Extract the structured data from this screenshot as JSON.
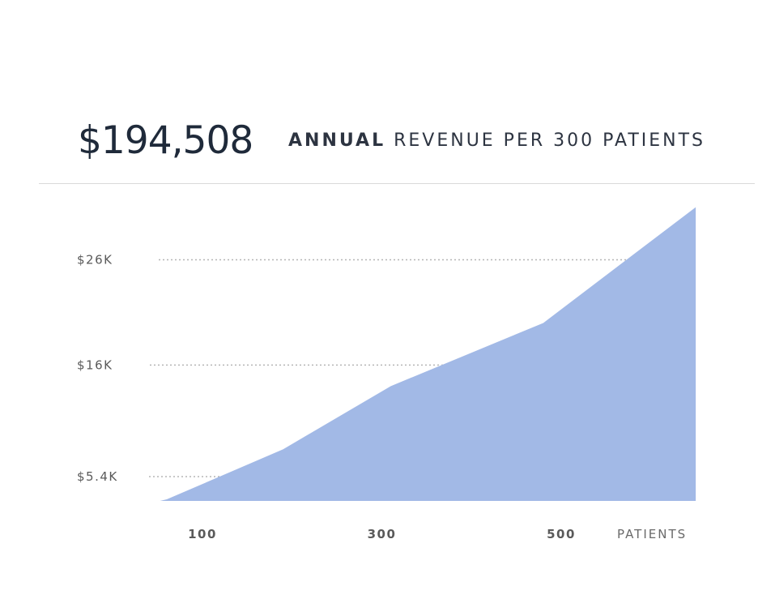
{
  "header": {
    "value": "$194,508",
    "subtitle_strong": "ANNUAL",
    "subtitle_rest": "REVENUE PER 300 PATIENTS"
  },
  "chart_data": {
    "type": "area",
    "x_unit_label": "PATIENTS",
    "x_ticks": [
      100,
      300,
      500
    ],
    "y_ticks": [
      {
        "label": "$5.4K",
        "value": 5.4
      },
      {
        "label": "$16K",
        "value": 16
      },
      {
        "label": "$26K",
        "value": 26
      }
    ],
    "series": [
      {
        "x": [
          50,
          190,
          310,
          480,
          650
        ],
        "y": [
          3.5,
          8.0,
          14.0,
          20.0,
          31.0
        ]
      }
    ],
    "grid": "dotted horizontal lines at y ticks",
    "colors": {
      "fill": "#a2b9e6",
      "grid": "#b5b5b5",
      "text": "#5a5a5a"
    }
  }
}
